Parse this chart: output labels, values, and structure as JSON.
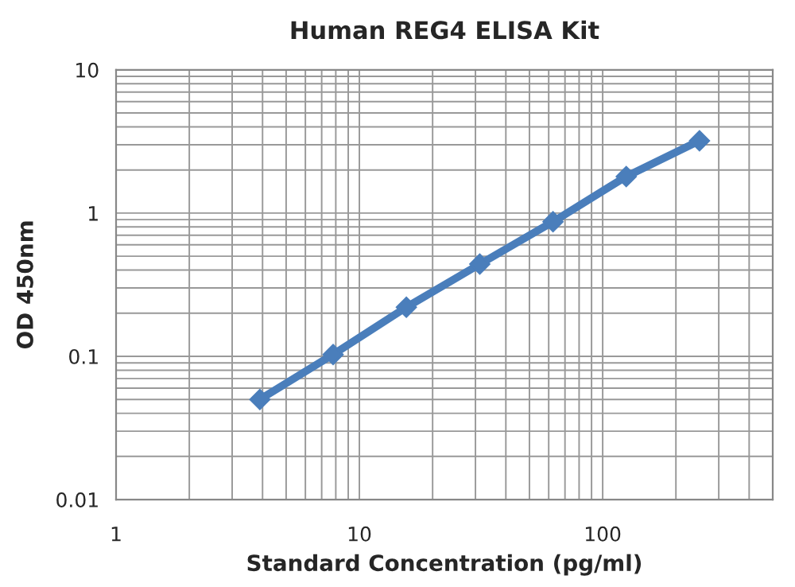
{
  "chart_data": {
    "type": "line",
    "title": "Human REG4 ELISA Kit",
    "xlabel": "Standard Concentration (pg/ml)",
    "ylabel": "OD 450nm",
    "x": [
      3.9,
      7.8,
      15.6,
      31.25,
      62.5,
      125,
      250
    ],
    "series": [
      {
        "color": "#4a7ebb",
        "values": [
          0.05,
          0.103,
          0.22,
          0.44,
          0.87,
          1.8,
          3.2
        ]
      }
    ],
    "log": "xy",
    "xlim": [
      1,
      500
    ],
    "xticks": [
      1,
      10,
      100
    ],
    "ylim": [
      0.01,
      10
    ],
    "yticks": [
      0.01,
      0.1,
      1,
      10
    ],
    "grid": true,
    "marker": "diamond",
    "line_style": "solid",
    "legend": false
  }
}
